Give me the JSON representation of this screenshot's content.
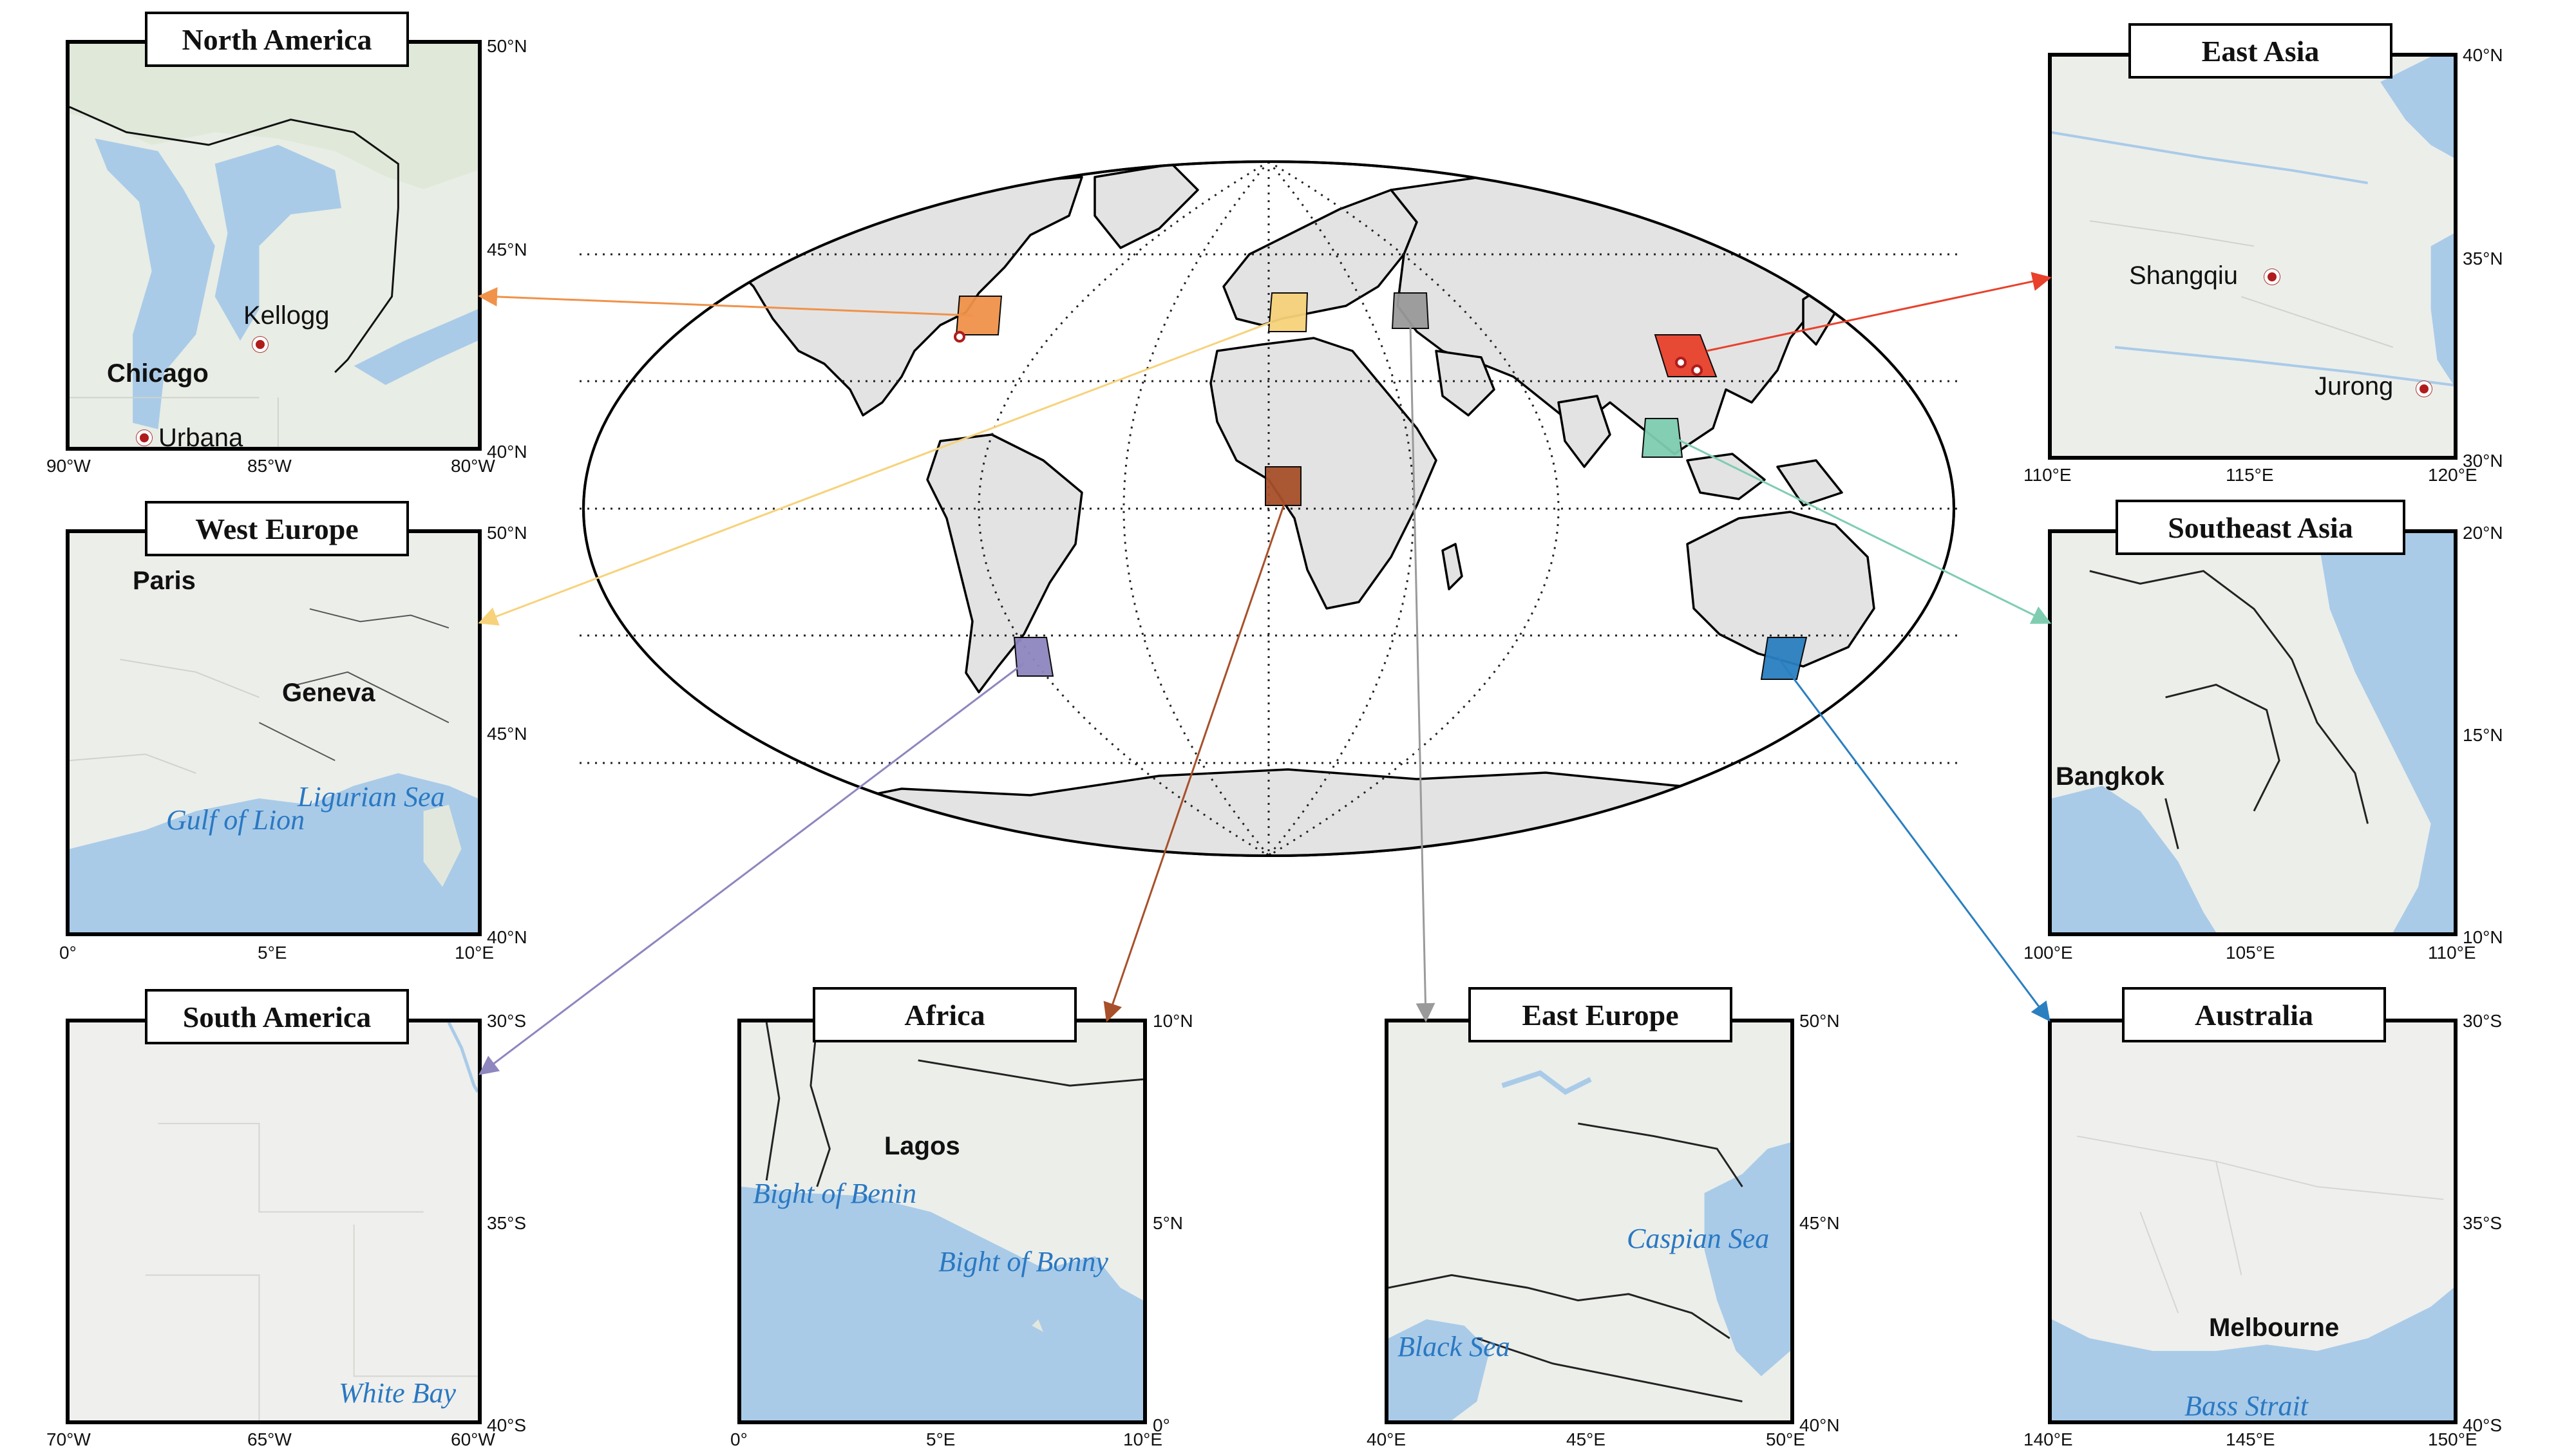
{
  "panels": {
    "north_america": {
      "title": "North America",
      "cities": [
        "Kellogg",
        "Chicago",
        "Urbana"
      ],
      "lat_ticks": [
        "50°N",
        "45°N",
        "40°N"
      ],
      "lon_ticks": [
        "90°W",
        "85°W",
        "80°W"
      ]
    },
    "west_europe": {
      "title": "West Europe",
      "cities": [
        "Paris",
        "Geneva"
      ],
      "seas": [
        "Ligurian Sea",
        "Gulf of Lion"
      ],
      "lat_ticks": [
        "50°N",
        "45°N",
        "40°N"
      ],
      "lon_ticks": [
        "0°",
        "5°E",
        "10°E"
      ]
    },
    "south_america": {
      "title": "South America",
      "seas": [
        "White Bay"
      ],
      "lat_ticks": [
        "30°S",
        "35°S",
        "40°S"
      ],
      "lon_ticks": [
        "70°W",
        "65°W",
        "60°W"
      ]
    },
    "africa": {
      "title": "Africa",
      "cities": [
        "Lagos"
      ],
      "seas": [
        "Bight of Benin",
        "Bight of Bonny"
      ],
      "lat_ticks": [
        "10°N",
        "5°N",
        "0°"
      ],
      "lon_ticks": [
        "0°",
        "5°E",
        "10°E"
      ]
    },
    "east_europe": {
      "title": "East Europe",
      "seas": [
        "Caspian Sea",
        "Black Sea"
      ],
      "lat_ticks": [
        "50°N",
        "45°N",
        "40°N"
      ],
      "lon_ticks": [
        "40°E",
        "45°E",
        "50°E"
      ]
    },
    "east_asia": {
      "title": "East Asia",
      "cities": [
        "Shangqiu",
        "Jurong"
      ],
      "lat_ticks": [
        "40°N",
        "35°N",
        "30°N"
      ],
      "lon_ticks": [
        "110°E",
        "115°E",
        "120°E"
      ]
    },
    "southeast_asia": {
      "title": "Southeast Asia",
      "cities": [
        "Bangkok"
      ],
      "lat_ticks": [
        "20°N",
        "15°N",
        "10°N"
      ],
      "lon_ticks": [
        "100°E",
        "105°E",
        "110°E"
      ]
    },
    "australia": {
      "title": "Australia",
      "cities": [
        "Melbourne"
      ],
      "seas": [
        "Bass Strait"
      ],
      "lat_ticks": [
        "30°S",
        "35°S",
        "40°S"
      ],
      "lon_ticks": [
        "140°E",
        "145°E",
        "150°E"
      ]
    }
  },
  "region_colors": {
    "north_america": "#f0924a",
    "west_europe": "#f7d27a",
    "south_america": "#8e86bf",
    "africa": "#a8502a",
    "east_europe": "#9a9a9a",
    "east_asia": "#e8412c",
    "southeast_asia": "#7fcdb1",
    "australia": "#2a7fc0"
  },
  "colors": {
    "land": "#e6e6e6",
    "water": "#a9c9e6",
    "basemap_land": "#eceeea",
    "city_marker": "#b01c1c"
  }
}
